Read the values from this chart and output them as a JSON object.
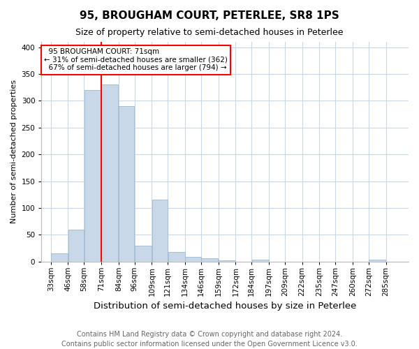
{
  "title": "95, BROUGHAM COURT, PETERLEE, SR8 1PS",
  "subtitle": "Size of property relative to semi-detached houses in Peterlee",
  "xlabel": "Distribution of semi-detached houses by size in Peterlee",
  "ylabel": "Number of semi-detached properties",
  "footer_line1": "Contains HM Land Registry data © Crown copyright and database right 2024.",
  "footer_line2": "Contains public sector information licensed under the Open Government Licence v3.0.",
  "bin_labels": [
    "33sqm",
    "46sqm",
    "58sqm",
    "71sqm",
    "84sqm",
    "96sqm",
    "109sqm",
    "121sqm",
    "134sqm",
    "146sqm",
    "159sqm",
    "172sqm",
    "184sqm",
    "197sqm",
    "209sqm",
    "222sqm",
    "235sqm",
    "247sqm",
    "260sqm",
    "272sqm",
    "285sqm"
  ],
  "bar_values": [
    15,
    60,
    320,
    330,
    290,
    30,
    115,
    18,
    8,
    6,
    2,
    0,
    4,
    0,
    0,
    0,
    0,
    0,
    0,
    3,
    0
  ],
  "bar_color": "#c8d8e8",
  "bar_edgecolor": "#a0b8d0",
  "vline_color": "red",
  "annotation_text_line1": "  95 BROUGHAM COURT: 71sqm",
  "annotation_text_line2": "← 31% of semi-detached houses are smaller (362)",
  "annotation_text_line3": "  67% of semi-detached houses are larger (794) →",
  "annotation_box_color": "white",
  "annotation_box_edgecolor": "red",
  "ylim": [
    0,
    410
  ],
  "xlim_left": 26,
  "xlim_right": 302,
  "title_fontsize": 11,
  "subtitle_fontsize": 9,
  "xlabel_fontsize": 9.5,
  "ylabel_fontsize": 8,
  "tick_fontsize": 7.5,
  "annotation_fontsize": 7.5,
  "footer_fontsize": 7
}
